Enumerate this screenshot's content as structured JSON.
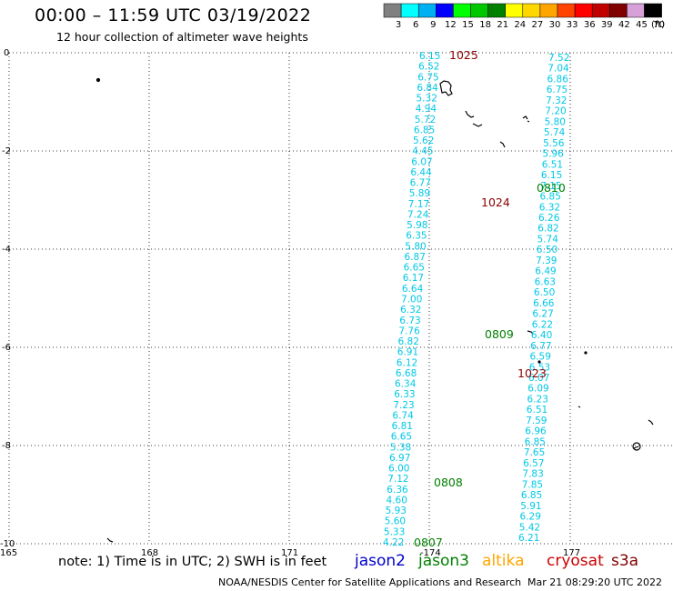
{
  "header": {
    "title": "00:00 – 11:59 UTC 03/19/2022",
    "subtitle": "12 hour collection of altimeter wave heights"
  },
  "colorbar": {
    "unit": "(ft)",
    "ticks": [
      "3",
      "6",
      "9",
      "12",
      "15",
      "18",
      "21",
      "24",
      "27",
      "30",
      "33",
      "36",
      "39",
      "42",
      "45",
      "70"
    ],
    "colors": [
      "#808080",
      "#00ffff",
      "#00b0f0",
      "#0000ff",
      "#00ff00",
      "#00c800",
      "#008000",
      "#ffff00",
      "#ffd700",
      "#ffa500",
      "#ff4500",
      "#ff0000",
      "#c00000",
      "#800000",
      "#d8a0d8",
      "#000000"
    ]
  },
  "axes": {
    "y_ticks": [
      "0",
      "-2",
      "-4",
      "-6",
      "-8",
      "-10"
    ],
    "x_ticks": [
      "165",
      "168",
      "171",
      "-174",
      "177"
    ]
  },
  "tracks": {
    "cryosat_1025": {
      "label": "1025",
      "values": [
        "6.15",
        "6.52",
        "6.75",
        "6.84",
        "5.32",
        "4.94",
        "5.72",
        "6.85",
        "5.62",
        "4.45",
        "6.07",
        "6.44",
        "6.77",
        "5.89",
        "7.17",
        "7.24",
        "5.98",
        "6.35",
        "5.80",
        "6.87",
        "6.65",
        "6.17",
        "6.64",
        "7.00",
        "6.32",
        "6.73",
        "7.76",
        "6.82",
        "6.91",
        "6.12",
        "6.68",
        "6.34",
        "6.33",
        "7.23",
        "6.74",
        "6.81",
        "6.65",
        "5.38",
        "6.97",
        "6.00",
        "7.12",
        "6.36",
        "4.60",
        "5.93",
        "5.60",
        "5.33",
        "4.22"
      ]
    },
    "cryosat_1024": {
      "label": "1024",
      "values": [
        "7.52",
        "7.04",
        "6.86",
        "6.75",
        "7.32",
        "7.20",
        "5.80",
        "5.74",
        "5.56",
        "5.96",
        "6.51",
        "6.15",
        "7.15",
        "6.85",
        "6.32",
        "6.26",
        "6.82",
        "5.74",
        "6.50",
        "7.39",
        "6.49",
        "6.63",
        "6.50",
        "6.66",
        "6.27",
        "6.22",
        "6.40",
        "6.77",
        "6.59",
        "6.53",
        "6.07",
        "6.09",
        "6.23",
        "6.51",
        "7.59",
        "6.96",
        "6.85",
        "7.65",
        "6.57",
        "7.83",
        "7.85",
        "6.85",
        "5.91",
        "6.29",
        "5.42",
        "6.21"
      ]
    },
    "cryosat_1023": {
      "label": "1023"
    },
    "jason3_0810": {
      "label": "0810"
    },
    "jason3_0809": {
      "label": "0809"
    },
    "jason3_0808": {
      "label": "0808"
    },
    "jason3_0807": {
      "label": "0807"
    }
  },
  "footer": {
    "note": "note: 1) Time is in UTC; 2) SWH is in feet",
    "satellites": [
      {
        "name": "jason2",
        "color": "#0000cd"
      },
      {
        "name": "jason3",
        "color": "#008000"
      },
      {
        "name": "altika",
        "color": "#ffa500"
      },
      {
        "name": "cryosat",
        "color": "#cc0000"
      },
      {
        "name": "s3a",
        "color": "#800000"
      }
    ],
    "credit": "NOAA/NESDIS Center for Satellite Applications and Research",
    "timestamp": "Mar 21 08:29:20 UTC 2022"
  },
  "colors": {
    "track_values": "#00c8e6",
    "cryosat_label": "#8b0000",
    "jason3_label": "#008000"
  }
}
